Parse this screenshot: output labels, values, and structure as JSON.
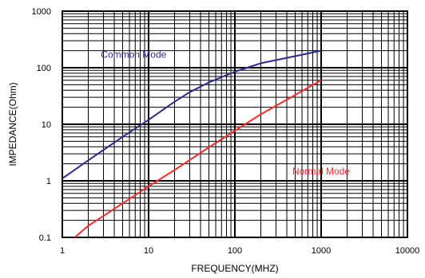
{
  "chart_data": {
    "type": "line",
    "xlabel": "FREQUENCY(MHZ)",
    "ylabel": "IMPEDANCE(Ohm)",
    "x_scale": "log",
    "y_scale": "log",
    "xlim": [
      1,
      10000
    ],
    "ylim": [
      0.1,
      1000
    ],
    "x_ticks": [
      "1",
      "10",
      "100",
      "1000",
      "10000"
    ],
    "y_ticks": [
      "0.1",
      "1",
      "10",
      "100",
      "1000"
    ],
    "grid": true,
    "series": [
      {
        "name": "Common Mode",
        "color": "#2e2a8c",
        "x": [
          1,
          2,
          5,
          10,
          20,
          30,
          50,
          100,
          200,
          500,
          1000
        ],
        "y": [
          1.1,
          2.3,
          6,
          12,
          25,
          37,
          55,
          85,
          120,
          160,
          200
        ]
      },
      {
        "name": "Normal Mode",
        "color": "#ff2a2a",
        "x": [
          1.4,
          1.7,
          2,
          5,
          10,
          20,
          50,
          100,
          200,
          500,
          1000
        ],
        "y": [
          0.1,
          0.13,
          0.16,
          0.4,
          0.8,
          1.55,
          3.9,
          7.7,
          15,
          33,
          60
        ]
      }
    ]
  }
}
